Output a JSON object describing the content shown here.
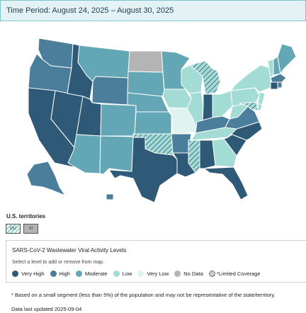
{
  "header": {
    "time_period": "Time Period: August 24, 2025 – August 30, 2025"
  },
  "colors": {
    "very_high": "#2e5977",
    "high": "#4b7e9a",
    "moderate": "#63a6b5",
    "low": "#a3dbd5",
    "very_low": "#dff4f1",
    "no_data": "#b4b4b4",
    "limited_hatch": "#555555"
  },
  "map": {
    "state_levels": {
      "WA": "high",
      "OR": "high",
      "CA": "very_high",
      "NV": "very_high",
      "ID": "very_high",
      "MT": "moderate",
      "WY": "high",
      "UT": "very_high",
      "AZ": "moderate",
      "CO": "moderate",
      "NM": "moderate",
      "ND": "no_data",
      "SD": "moderate",
      "NE": "moderate",
      "KS": "moderate",
      "OK": "limited_coverage",
      "TX": "very_high",
      "MN": "moderate",
      "IA": "low",
      "MO": "very_low",
      "AR": "high",
      "LA": "very_high",
      "WI": "low",
      "IL": "low",
      "MI": "limited_coverage",
      "IN": "very_high",
      "OH": "low",
      "KY": "high",
      "TN": "low",
      "MS": "limited_coverage",
      "AL": "very_high",
      "GA": "low",
      "FL": "very_high",
      "SC": "very_high",
      "NC": "very_high",
      "VA": "high",
      "WV": "low",
      "PA": "low",
      "NY": "low",
      "VT": "low",
      "NH": "moderate",
      "ME": "moderate",
      "MA": "high",
      "CT": "very_high",
      "RI": "high",
      "NJ": "low",
      "DE": "low",
      "MD": "limited_coverage",
      "AK": "high",
      "HI": "high"
    }
  },
  "territories": {
    "title": "U.S. territories",
    "items": [
      {
        "code": "GU",
        "level": "limited_coverage"
      },
      {
        "code": "VI",
        "level": "no_data"
      }
    ]
  },
  "legend": {
    "title": "SARS-CoV-2 Wastewater Viral Activity Levels",
    "subtitle": "Select a level to add or remove from map.",
    "items": [
      {
        "label": "Very High",
        "color_key": "very_high"
      },
      {
        "label": "High",
        "color_key": "high"
      },
      {
        "label": "Moderate",
        "color_key": "moderate"
      },
      {
        "label": "Low",
        "color_key": "low"
      },
      {
        "label": "Very Low",
        "color_key": "very_low"
      },
      {
        "label": "No Data",
        "color_key": "no_data"
      }
    ],
    "limited_label": "*Limited Coverage"
  },
  "footnote": "* Based on a small segment (less than 5%) of the population and may not be representative of the state/territory.",
  "updated": "Data last updated 2025-09-04"
}
